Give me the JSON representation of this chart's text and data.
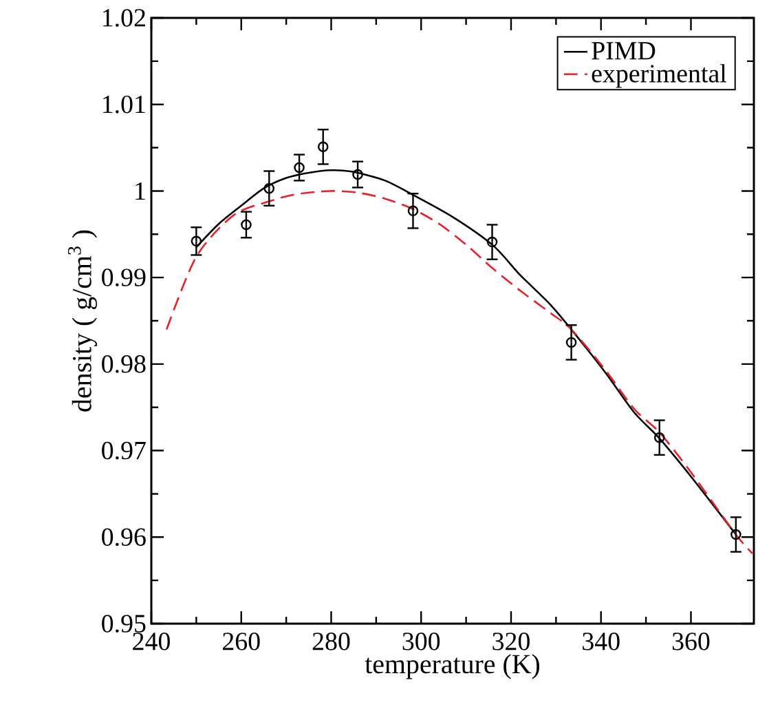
{
  "chart_data": {
    "type": "line",
    "xlabel": "temperature (K)",
    "ylabel": "density ( g/cm$^{3}$ )",
    "xlim": [
      240,
      374
    ],
    "ylim": [
      0.95,
      1.02
    ],
    "xticks": [
      240,
      260,
      280,
      300,
      320,
      340,
      360
    ],
    "yticks": [
      0.95,
      0.96,
      0.97,
      0.98,
      0.99,
      1,
      1.01,
      1.02
    ],
    "grid": false,
    "legend": "top right",
    "series": [
      {
        "name": "PIMD",
        "type": "line",
        "color": "#000000",
        "line_style": "solid",
        "marker": "none",
        "x": [
          250,
          255,
          260,
          265,
          270,
          275,
          280,
          285,
          292,
          298,
          307,
          316,
          322,
          328.5,
          333.4,
          341,
          347.4,
          353,
          360,
          370
        ],
        "values": [
          0.9935,
          0.9962,
          0.9983,
          1.0003,
          1.0015,
          1.0021,
          1.0024,
          1.0022,
          1.0012,
          0.9996,
          0.997,
          0.9937,
          0.9903,
          0.987,
          0.984,
          0.979,
          0.9744,
          0.9714,
          0.967,
          0.9603
        ]
      },
      {
        "name": "experimental",
        "type": "line",
        "color": "#e8202a",
        "line_style": "dashed",
        "marker": "none",
        "x": [
          243.4,
          250,
          258.3,
          266.2,
          272,
          279.7,
          286,
          292,
          298.2,
          304,
          310,
          315.8,
          322,
          328.5,
          333.4,
          341,
          347.4,
          353,
          360,
          370,
          373.7
        ],
        "values": [
          0.984,
          0.9924,
          0.9972,
          0.9988,
          0.9996,
          1.0,
          0.9998,
          0.9991,
          0.9979,
          0.9962,
          0.9938,
          0.9911,
          0.9885,
          0.986,
          0.984,
          0.9793,
          0.9748,
          0.9721,
          0.9675,
          0.9603,
          0.9581
        ]
      },
      {
        "type": "scatter",
        "color": "#000000",
        "marker": "circle",
        "x": [
          250,
          261.1,
          266.2,
          272.9,
          278.2,
          285.9,
          298.2,
          315.8,
          333.4,
          353,
          370
        ],
        "values": [
          0.9942,
          0.9961,
          1.0003,
          1.0027,
          1.0051,
          1.0019,
          0.9977,
          0.9941,
          0.9825,
          0.9715,
          0.9603
        ],
        "errors": [
          0.0016,
          0.0015,
          0.002,
          0.0015,
          0.002,
          0.0015,
          0.002,
          0.002,
          0.002,
          0.002,
          0.002
        ]
      }
    ]
  }
}
